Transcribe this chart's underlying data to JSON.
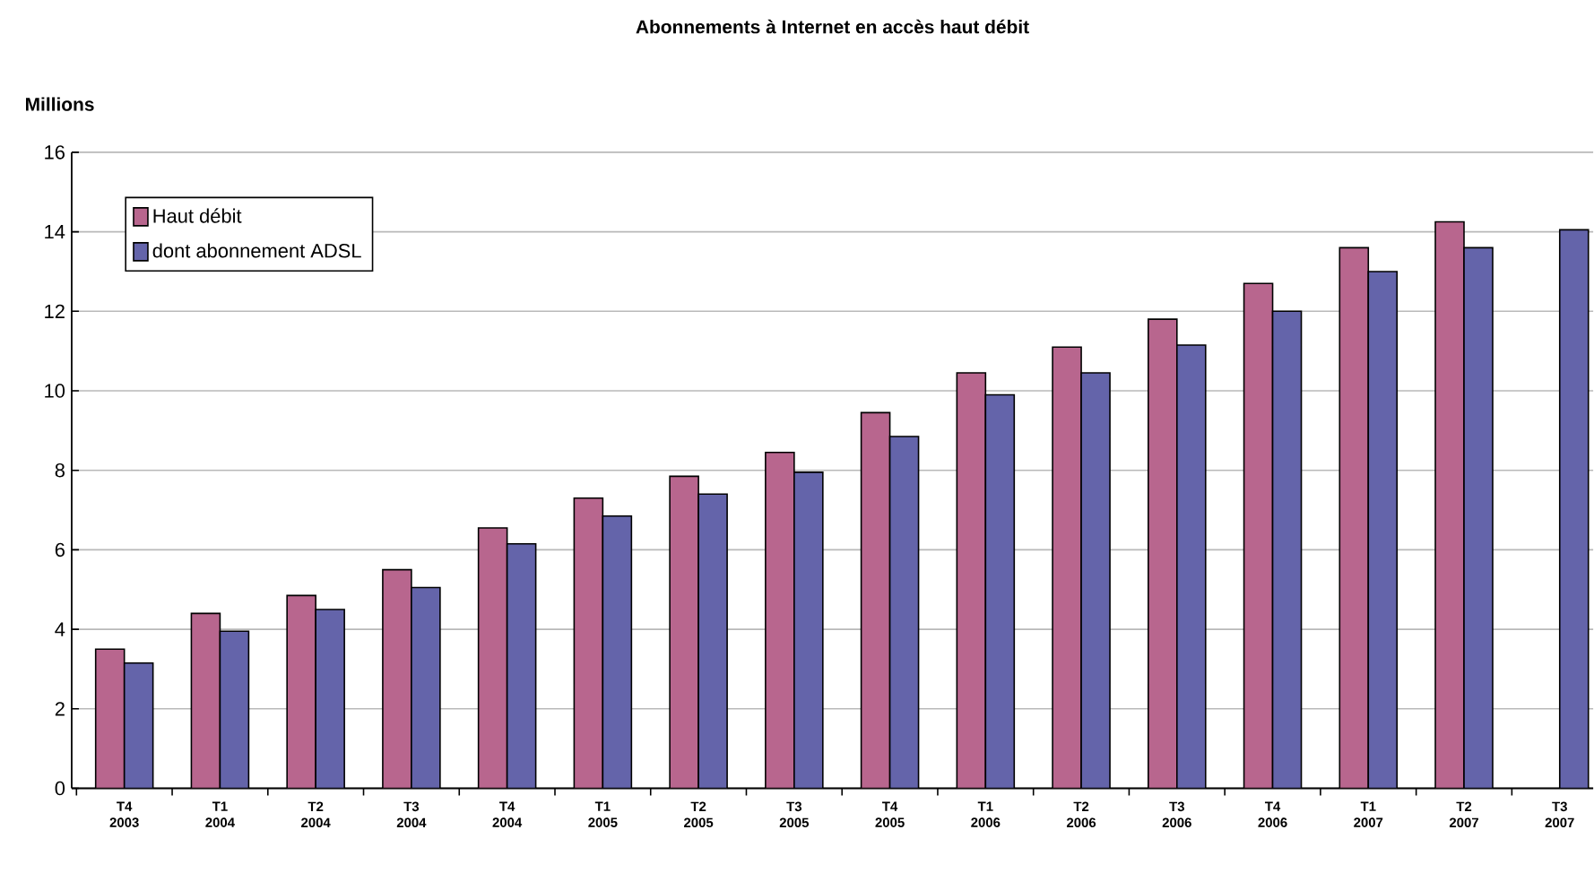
{
  "chart_data": {
    "type": "bar",
    "title": "Abonnements à Internet en accès haut débit",
    "ylabel": "Millions",
    "categories": [
      "T4 2003",
      "T1 2004",
      "T2 2004",
      "T3 2004",
      "T4 2004",
      "T1 2005",
      "T2 2005",
      "T3 2005",
      "T4 2005",
      "T1 2006",
      "T2 2006",
      "T3 2006",
      "T4 2006",
      "T1 2007",
      "T2 2007",
      "T3 2007"
    ],
    "series": [
      {
        "name": "Haut débit",
        "color": "#b8668e",
        "values": [
          3.5,
          4.4,
          4.85,
          5.5,
          6.55,
          7.3,
          7.85,
          8.45,
          9.45,
          10.45,
          11.1,
          11.8,
          12.7,
          13.6,
          14.25,
          null
        ]
      },
      {
        "name": "dont abonnement ADSL",
        "color": "#6464aa",
        "values": [
          3.15,
          3.95,
          4.5,
          5.05,
          6.15,
          6.85,
          7.4,
          7.95,
          8.85,
          9.9,
          10.45,
          11.15,
          12.0,
          13.0,
          13.6,
          14.05
        ]
      }
    ],
    "ylim": [
      0,
      16
    ],
    "yticks": [
      0,
      2,
      4,
      6,
      8,
      10,
      12,
      14,
      16
    ],
    "grid": "y",
    "legend": "top left"
  }
}
